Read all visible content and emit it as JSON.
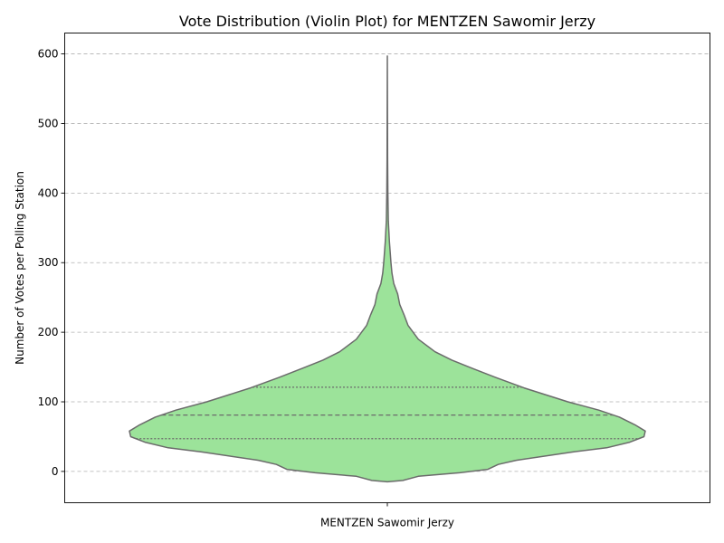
{
  "chart_data": {
    "type": "violin",
    "title": "Vote Distribution (Violin Plot) for MENTZEN Sawomir Jerzy",
    "xlabel": "",
    "ylabel": "Number of Votes per Polling Station",
    "categories": [
      "MENTZEN Sawomir Jerzy"
    ],
    "ylim": [
      -45,
      630
    ],
    "yticks": [
      0,
      100,
      200,
      300,
      400,
      500,
      600
    ],
    "grid": "y-dashed",
    "fill_color": "#9ce39a",
    "edge_color": "#6b6b6b",
    "quartiles": {
      "q1": 47,
      "median": 81,
      "q3": 121
    },
    "density_profile": [
      {
        "y": -15,
        "w": 0.0
      },
      {
        "y": -13,
        "w": 0.06
      },
      {
        "y": -7,
        "w": 0.12
      },
      {
        "y": -2,
        "w": 0.28
      },
      {
        "y": 3,
        "w": 0.39
      },
      {
        "y": 10,
        "w": 0.43
      },
      {
        "y": 16,
        "w": 0.5
      },
      {
        "y": 28,
        "w": 0.72
      },
      {
        "y": 34,
        "w": 0.85
      },
      {
        "y": 42,
        "w": 0.94
      },
      {
        "y": 50,
        "w": 0.995
      },
      {
        "y": 58,
        "w": 1.0
      },
      {
        "y": 67,
        "w": 0.96
      },
      {
        "y": 78,
        "w": 0.9
      },
      {
        "y": 88,
        "w": 0.82
      },
      {
        "y": 100,
        "w": 0.7
      },
      {
        "y": 120,
        "w": 0.53
      },
      {
        "y": 135,
        "w": 0.42
      },
      {
        "y": 148,
        "w": 0.33
      },
      {
        "y": 160,
        "w": 0.25
      },
      {
        "y": 172,
        "w": 0.185
      },
      {
        "y": 190,
        "w": 0.12
      },
      {
        "y": 210,
        "w": 0.08
      },
      {
        "y": 225,
        "w": 0.065
      },
      {
        "y": 240,
        "w": 0.048
      },
      {
        "y": 255,
        "w": 0.04
      },
      {
        "y": 270,
        "w": 0.025
      },
      {
        "y": 285,
        "w": 0.018
      },
      {
        "y": 300,
        "w": 0.014
      },
      {
        "y": 330,
        "w": 0.008
      },
      {
        "y": 360,
        "w": 0.004
      },
      {
        "y": 400,
        "w": 0.002
      },
      {
        "y": 450,
        "w": 0.001
      },
      {
        "y": 597,
        "w": 0.0
      }
    ]
  }
}
